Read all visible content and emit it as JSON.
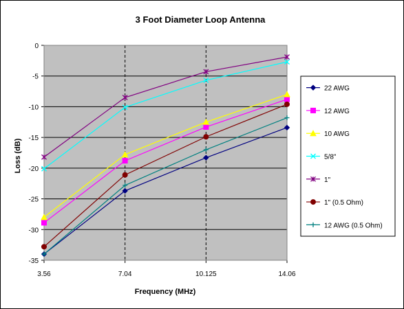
{
  "chart_data": {
    "type": "line",
    "title": "3 Foot Diameter Loop Antenna",
    "xlabel": "Frequency (MHz)",
    "ylabel": "Loss (dB)",
    "x": [
      "3.56",
      "7.04",
      "10.125",
      "14.06"
    ],
    "ylim": [
      -35,
      0
    ],
    "yticks": [
      "0",
      "-5",
      "-10",
      "-15",
      "-20",
      "-25",
      "-30",
      "-35"
    ],
    "grid": "horizontal lines plus vertical dashed lines",
    "plot_background": "#c0c0c0",
    "legend_position": "right",
    "series": [
      {
        "name": "22 AWG",
        "color": "#000080",
        "marker": "diamond",
        "values": [
          -34.0,
          -23.7,
          -18.3,
          -13.4
        ]
      },
      {
        "name": "12 AWG",
        "color": "#ff00ff",
        "marker": "square",
        "values": [
          -28.9,
          -18.8,
          -13.3,
          -8.8
        ]
      },
      {
        "name": "10 AWG",
        "color": "#ffff00",
        "marker": "triangle",
        "values": [
          -28.0,
          -17.8,
          -12.5,
          -8.0
        ]
      },
      {
        "name": "5/8\"",
        "color": "#00ffff",
        "marker": "x",
        "values": [
          -20.1,
          -10.1,
          -5.7,
          -2.7
        ]
      },
      {
        "name": "1\"",
        "color": "#800080",
        "marker": "star",
        "values": [
          -18.2,
          -8.5,
          -4.3,
          -1.9
        ]
      },
      {
        "name": "1\" (0.5 Ohm)",
        "color": "#800000",
        "marker": "circle",
        "values": [
          -32.8,
          -21.1,
          -14.9,
          -9.6
        ]
      },
      {
        "name": "12 AWG (0.5 Ohm)",
        "color": "#008080",
        "marker": "plus",
        "values": [
          -34.0,
          -22.8,
          -17.0,
          -11.8
        ]
      }
    ]
  }
}
